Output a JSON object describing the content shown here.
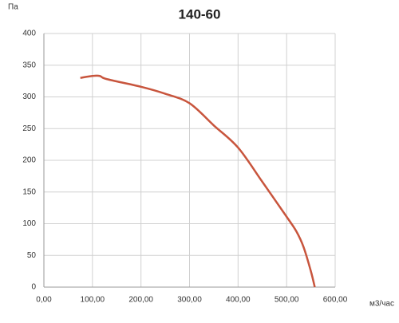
{
  "chart_data": {
    "type": "line",
    "title": "140-60",
    "y_label": "Па",
    "x_label": "м3/час",
    "x": [
      75,
      100,
      115,
      130,
      200,
      250,
      300,
      350,
      400,
      450,
      500,
      520,
      535,
      550,
      558
    ],
    "series": [
      {
        "name": "140-60",
        "color": "#c8553d",
        "values": [
          330,
          333,
          333,
          328,
          316,
          305,
          290,
          255,
          220,
          166,
          111,
          88,
          63,
          25,
          0
        ]
      }
    ],
    "xlim": [
      0,
      600
    ],
    "xticks": [
      {
        "value": 0,
        "label": "0,00"
      },
      {
        "value": 100,
        "label": "100,00"
      },
      {
        "value": 200,
        "label": "200,00"
      },
      {
        "value": 300,
        "label": "300,00"
      },
      {
        "value": 400,
        "label": "400,00"
      },
      {
        "value": 500,
        "label": "500,00"
      },
      {
        "value": 600,
        "label": "600,00"
      }
    ],
    "ylim": [
      0,
      400
    ],
    "yticks": [
      0,
      50,
      100,
      150,
      200,
      250,
      300,
      350,
      400
    ],
    "grid": true
  }
}
